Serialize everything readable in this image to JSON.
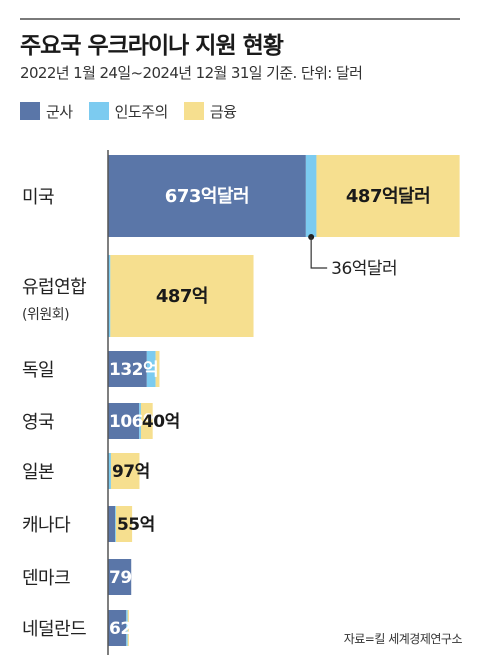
{
  "title": "주요국 우크라이나 지원 현황",
  "subtitle": "2022년 1월 24일~2024년 12월 31일 기준. 단위: 달러",
  "source": "자료=킬 세계경제연구소",
  "colors": {
    "military": "#5a76a8",
    "humanitarian": "#7ccbf0",
    "financial": "#f6df8f",
    "axis": "#555555"
  },
  "legend": [
    {
      "key": "military",
      "label": "군사"
    },
    {
      "key": "humanitarian",
      "label": "인도주의"
    },
    {
      "key": "financial",
      "label": "금융"
    }
  ],
  "chart_data": {
    "type": "bar",
    "orientation": "horizontal",
    "stacked": true,
    "unit": "억 달러",
    "categories": [
      "미국",
      "유럽연합",
      "독일",
      "영국",
      "일본",
      "캐나다",
      "덴마크",
      "네덜란드"
    ],
    "category_sublabels": [
      "",
      "(위원회)",
      "",
      "",
      "",
      "",
      "",
      ""
    ],
    "series": [
      {
        "name": "군사",
        "key": "military",
        "values": [
          673,
          0,
          132,
          106,
          0,
          24,
          79,
          62
        ]
      },
      {
        "name": "인도주의",
        "key": "humanitarian",
        "values": [
          36,
          8,
          30,
          6,
          10,
          3,
          0,
          5
        ]
      },
      {
        "name": "금융",
        "key": "financial",
        "values": [
          487,
          487,
          13,
          40,
          97,
          55,
          0,
          4
        ]
      }
    ],
    "data_labels": [
      {
        "row": 0,
        "key": "military",
        "text": "673억달러"
      },
      {
        "row": 0,
        "key": "financial",
        "text": "487억달러"
      },
      {
        "row": 1,
        "key": "financial",
        "text": "487억"
      },
      {
        "row": 2,
        "key": "military",
        "text": "132억"
      },
      {
        "row": 3,
        "key": "military",
        "text": "106억"
      },
      {
        "row": 3,
        "key": "financial",
        "text": "40억"
      },
      {
        "row": 4,
        "key": "financial",
        "text": "97억"
      },
      {
        "row": 5,
        "key": "financial",
        "text": "55억"
      },
      {
        "row": 6,
        "key": "military",
        "text": "79억"
      },
      {
        "row": 7,
        "key": "military",
        "text": "62억"
      }
    ],
    "callout": {
      "row": 0,
      "key": "humanitarian",
      "text": "36억달러"
    }
  }
}
